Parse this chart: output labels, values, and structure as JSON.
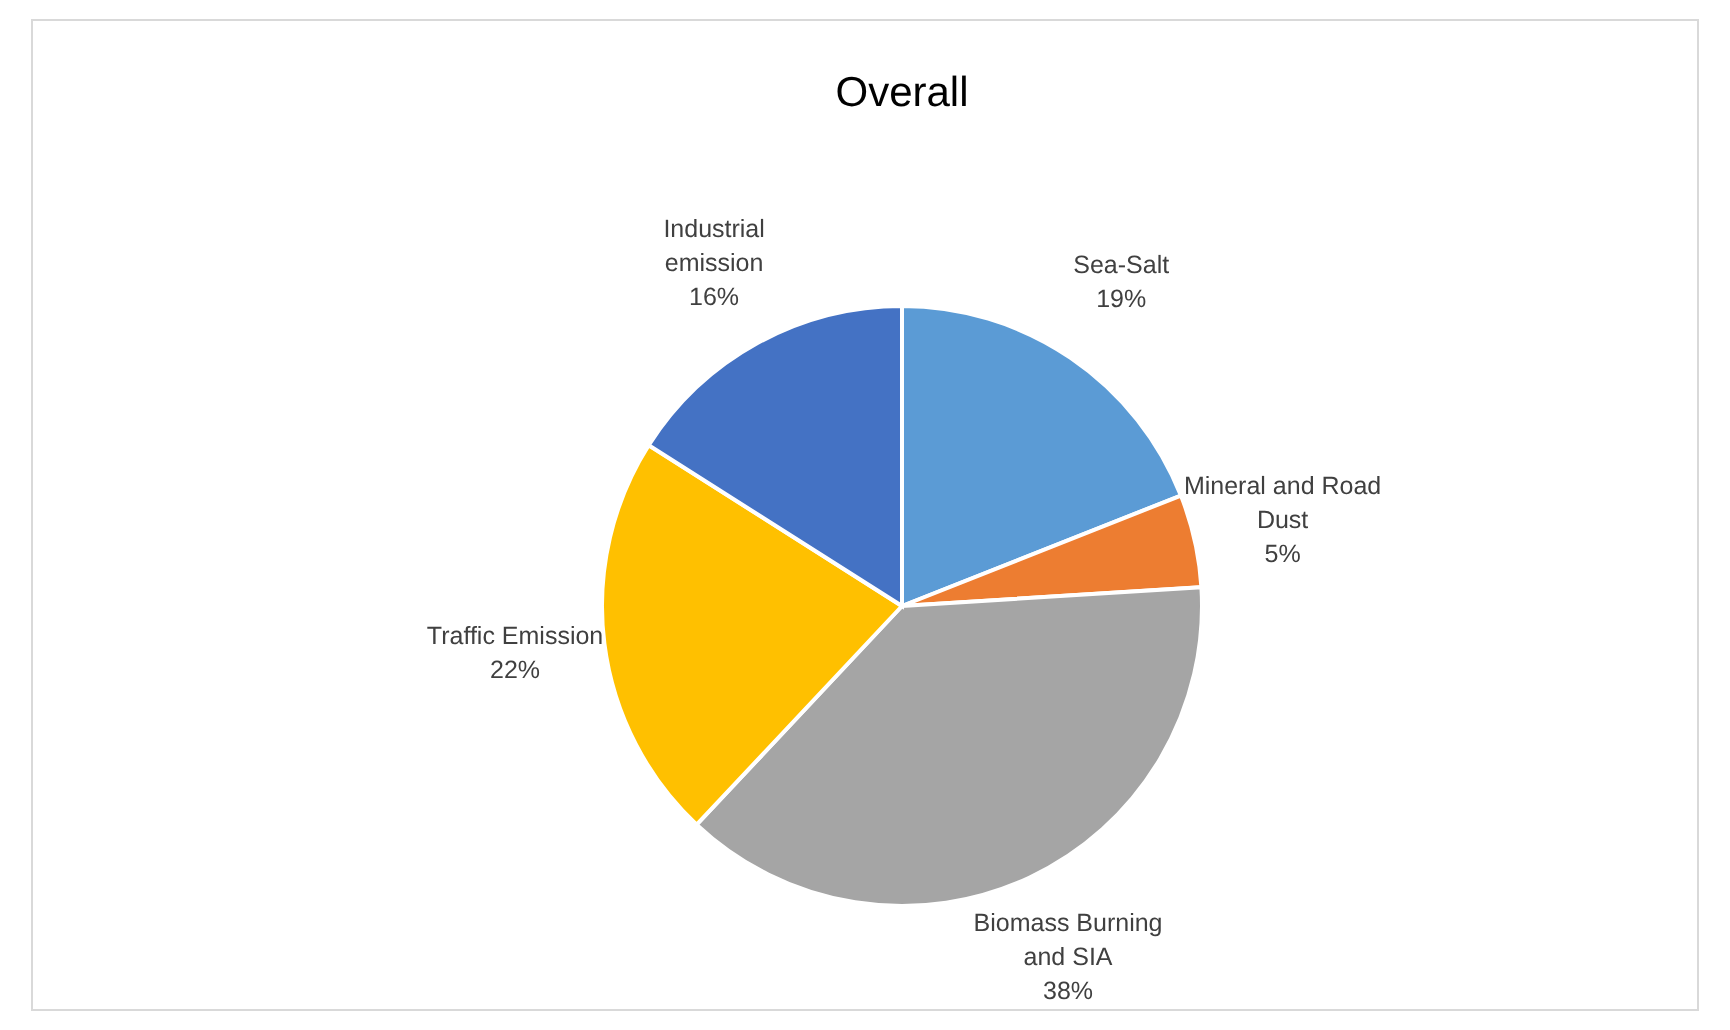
{
  "chart_data": {
    "type": "pie",
    "title": "Overall",
    "categories": [
      "Sea-Salt",
      "Mineral and Road Dust",
      "Biomass Burning and SIA",
      "Traffic Emission",
      "Industrial emission"
    ],
    "values": [
      19,
      5,
      38,
      22,
      16
    ],
    "colors": [
      "#5b9bd5",
      "#ed7d31",
      "#a5a5a5",
      "#ffc000",
      "#4472c4"
    ],
    "value_labels": [
      "19%",
      "5%",
      "38%",
      "22%",
      "16%"
    ]
  }
}
